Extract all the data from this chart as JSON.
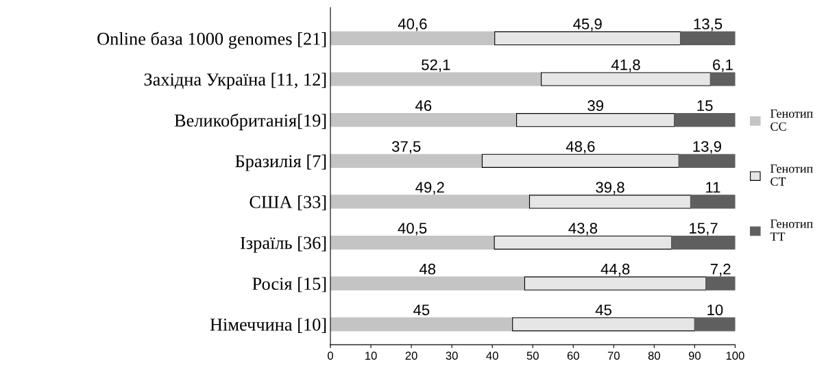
{
  "chart_data": {
    "type": "bar",
    "orientation": "horizontal",
    "stacked": true,
    "categories": [
      "Online база 1000 genomes [21]",
      "Західна Україна [11, 12]",
      "Великобританія[19]",
      "Бразилія [7]",
      "США [33]",
      "Ізраїль [36]",
      "Росія [15]",
      "Німеччина [10]"
    ],
    "series": [
      {
        "name": "Генотип CC",
        "color": "#c4c4c4",
        "values": [
          40.6,
          52.1,
          46,
          37.5,
          49.2,
          40.5,
          48,
          45
        ],
        "value_labels": [
          "40,6",
          "52,1",
          "46",
          "37,5",
          "49,2",
          "40,5",
          "48",
          "45"
        ]
      },
      {
        "name": "Генотип CT",
        "color": "#e6e6e6",
        "values": [
          45.9,
          41.8,
          39,
          48.6,
          39.8,
          43.8,
          44.8,
          45
        ],
        "value_labels": [
          "45,9",
          "41,8",
          "39",
          "48,6",
          "39,8",
          "43,8",
          "44,8",
          "45"
        ]
      },
      {
        "name": "Генотип TT",
        "color": "#5f5f5f",
        "values": [
          13.5,
          6.1,
          15,
          13.9,
          11,
          15.7,
          7.2,
          10
        ],
        "value_labels": [
          "13,5",
          "6,1",
          "15",
          "13,9",
          "11",
          "15,7",
          "7,2",
          "10"
        ]
      }
    ],
    "xlim": [
      0,
      100
    ],
    "xticks": [
      0,
      10,
      20,
      30,
      40,
      50,
      60,
      70,
      80,
      90,
      100
    ],
    "grid": false,
    "legend": "right"
  }
}
